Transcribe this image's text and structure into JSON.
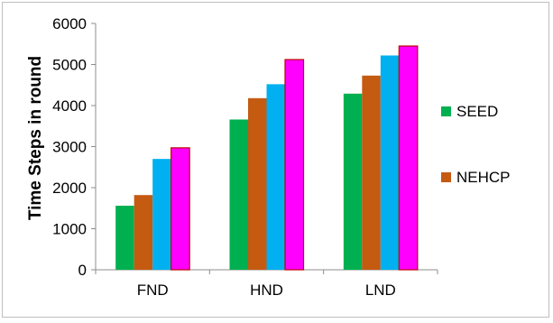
{
  "chart_data": {
    "type": "bar",
    "title": "",
    "xlabel": "",
    "ylabel": "Time Steps in round",
    "categories": [
      "FND",
      "HND",
      "LND"
    ],
    "ylim": [
      0,
      6000
    ],
    "yticks": [
      0,
      1000,
      2000,
      3000,
      4000,
      5000,
      6000
    ],
    "grid": false,
    "legend_position": "right",
    "series": [
      {
        "name": "SEED",
        "color": "#00b050",
        "values": [
          1560,
          3660,
          4290
        ]
      },
      {
        "name": "NEHCP",
        "color": "#c55a11",
        "values": [
          1820,
          4180,
          4730
        ]
      },
      {
        "color": "#00b0f0",
        "values": [
          2700,
          4520,
          5220
        ]
      },
      {
        "color": "#ff00ff",
        "values": [
          2970,
          5120,
          5450
        ]
      }
    ]
  }
}
